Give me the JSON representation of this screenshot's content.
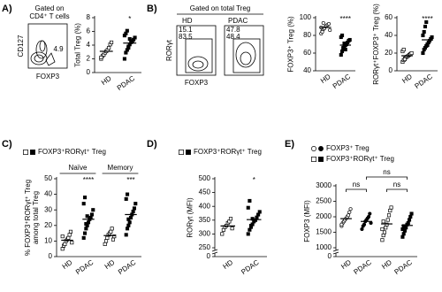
{
  "panels": [
    "A)",
    "B)",
    "C)",
    "D)",
    "E)"
  ],
  "flow": {
    "a": {
      "title": [
        "Gated on",
        "CD4⁺ T cells"
      ],
      "ylabel": "CD127",
      "xlabel": "FOXP3",
      "gate": 4.9
    },
    "b": {
      "title": "Gated on total Treg",
      "ylabel": "RORγt",
      "xlabel": "FOXP3",
      "plots": [
        {
          "name": "HD",
          "top": 15.1,
          "bottom": 83.5
        },
        {
          "name": "PDAC",
          "top": 47.8,
          "bottom": 48.4
        }
      ]
    }
  },
  "chart_data": [
    {
      "type": "strip",
      "ylabel": "Total Treg (%)",
      "categories": [
        "HD",
        "PDAC"
      ],
      "markers": [
        "square",
        "square"
      ],
      "filled": [
        false,
        true
      ],
      "color": "#000000",
      "values": [
        [
          2.0,
          2.4,
          2.6,
          2.9,
          3.1,
          3.3,
          3.6,
          4.1,
          4.4,
          2.2
        ],
        [
          2.0,
          2.9,
          3.3,
          3.8,
          4.1,
          4.4,
          4.6,
          4.8,
          5.1,
          5.4,
          5.7,
          6.1,
          3.6,
          4.9
        ]
      ],
      "means": [
        3.1,
        4.3
      ],
      "ylim": [
        0,
        8
      ],
      "yticks": [
        0,
        2,
        4,
        6,
        8
      ],
      "annotations": [
        "*"
      ]
    },
    {
      "type": "strip",
      "ylabel": "FOXP3⁺ Treg (%)",
      "categories": [
        "HD",
        "PDAC"
      ],
      "markers": [
        "circle",
        "square"
      ],
      "filled": [
        false,
        true
      ],
      "color": "#000000",
      "values": [
        [
          82,
          85,
          87,
          88,
          90,
          91,
          92,
          93,
          86,
          89,
          84,
          94
        ],
        [
          58,
          62,
          65,
          67,
          69,
          70,
          72,
          74,
          75,
          78,
          80,
          66,
          71,
          64
        ]
      ],
      "means": [
        89,
        69
      ],
      "ylim": [
        40,
        100
      ],
      "yticks": [
        40,
        60,
        80,
        100
      ],
      "annotations": [
        "****"
      ]
    },
    {
      "type": "strip",
      "ylabel": "RORγt⁺FOXP3⁺ Treg (%)",
      "categories": [
        "HD",
        "PDAC"
      ],
      "markers": [
        "square",
        "square"
      ],
      "filled": [
        false,
        true
      ],
      "color": "#000000",
      "values": [
        [
          10,
          12,
          14,
          15,
          16,
          17,
          18,
          19,
          20,
          22,
          24,
          13
        ],
        [
          20,
          24,
          26,
          28,
          30,
          32,
          34,
          36,
          38,
          40,
          44,
          50,
          55,
          29
        ]
      ],
      "means": [
        17,
        35
      ],
      "ylim": [
        0,
        60
      ],
      "yticks": [
        0,
        20,
        40,
        60
      ],
      "annotations": [
        "****"
      ]
    },
    {
      "type": "strip",
      "ylabel": [
        "% FOXP3⁺RORγt⁺ Treg",
        "among total Treg"
      ],
      "legend": [
        "FOXP3⁺RORγt⁺ Treg"
      ],
      "group_labels": [
        "Naïve",
        "Memory"
      ],
      "categories": [
        "HD",
        "PDAC",
        "HD",
        "PDAC"
      ],
      "markers": [
        "square",
        "square",
        "square",
        "square"
      ],
      "filled": [
        false,
        true,
        false,
        true
      ],
      "color": "#000000",
      "values": [
        [
          5,
          7,
          8,
          10,
          11,
          12,
          14,
          16,
          9,
          13
        ],
        [
          12,
          15,
          18,
          20,
          22,
          24,
          25,
          27,
          30,
          34,
          38,
          21,
          26
        ],
        [
          8,
          10,
          12,
          14,
          15,
          16,
          18,
          11,
          13
        ],
        [
          14,
          18,
          20,
          22,
          25,
          27,
          29,
          31,
          34,
          37,
          40,
          24
        ]
      ],
      "means": [
        10.5,
        24,
        13.5,
        27
      ],
      "ylim": [
        0,
        50
      ],
      "yticks": [
        0,
        10,
        20,
        30,
        40,
        50
      ],
      "annotations": [
        "****",
        "***"
      ]
    },
    {
      "type": "strip",
      "ylabel": "RORγt (MFI)",
      "legend": [
        "FOXP3⁺RORγt⁺ Treg"
      ],
      "categories": [
        "HD",
        "PDAC"
      ],
      "markers": [
        "square",
        "square"
      ],
      "filled": [
        false,
        true
      ],
      "color": "#000000",
      "axis_break": true,
      "values": [
        [
          300,
          315,
          325,
          330,
          340,
          345,
          355,
          320
        ],
        [
          300,
          315,
          325,
          335,
          345,
          350,
          360,
          370,
          380,
          395,
          420,
          330,
          355
        ]
      ],
      "means": [
        329,
        352
      ],
      "ylim": [
        0,
        500
      ],
      "yticks": [
        0,
        250,
        300,
        350,
        400,
        450,
        500
      ],
      "annotations": [
        "*"
      ]
    },
    {
      "type": "strip",
      "ylabel": "FOXP3 (MFI)",
      "legend": [
        "FOXP3⁺ Treg",
        "FOXP3⁺RORγt⁺ Treg"
      ],
      "categories": [
        "HD",
        "PDAC",
        "HD",
        "PDAC"
      ],
      "markers": [
        "circle",
        "circle",
        "square",
        "square"
      ],
      "filled": [
        false,
        true,
        false,
        true
      ],
      "color": "#000000",
      "axis_break": true,
      "values": [
        [
          1700,
          1800,
          1850,
          1900,
          1950,
          2000,
          2050,
          2150,
          2250,
          1750
        ],
        [
          1600,
          1700,
          1750,
          1850,
          1900,
          1950,
          2000,
          2100,
          1800
        ],
        [
          1250,
          1400,
          1500,
          1650,
          1750,
          1900,
          2050,
          2200,
          2300,
          1600,
          1850
        ],
        [
          1350,
          1450,
          1550,
          1650,
          1750,
          1800,
          1900,
          2000,
          2100,
          1600,
          1700
        ]
      ],
      "means": [
        1940,
        1850,
        1770,
        1720
      ],
      "ylim": [
        0,
        3000
      ],
      "yticks": [
        0,
        1000,
        1500,
        2000,
        2500,
        3000
      ],
      "annotations": [
        "ns",
        "ns",
        "ns"
      ]
    }
  ]
}
